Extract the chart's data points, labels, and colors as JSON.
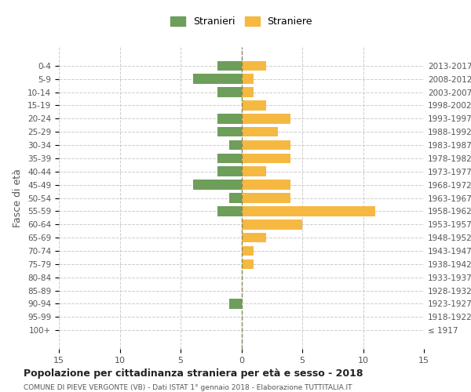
{
  "age_groups": [
    "100+",
    "95-99",
    "90-94",
    "85-89",
    "80-84",
    "75-79",
    "70-74",
    "65-69",
    "60-64",
    "55-59",
    "50-54",
    "45-49",
    "40-44",
    "35-39",
    "30-34",
    "25-29",
    "20-24",
    "15-19",
    "10-14",
    "5-9",
    "0-4"
  ],
  "birth_years": [
    "≤ 1917",
    "1918-1922",
    "1923-1927",
    "1928-1932",
    "1933-1937",
    "1938-1942",
    "1943-1947",
    "1948-1952",
    "1953-1957",
    "1958-1962",
    "1963-1967",
    "1968-1972",
    "1973-1977",
    "1978-1982",
    "1983-1987",
    "1988-1992",
    "1993-1997",
    "1998-2002",
    "2003-2007",
    "2008-2012",
    "2013-2017"
  ],
  "males": [
    0,
    0,
    1,
    0,
    0,
    0,
    0,
    0,
    0,
    2,
    1,
    4,
    2,
    2,
    1,
    2,
    2,
    0,
    2,
    4,
    2
  ],
  "females": [
    0,
    0,
    0,
    0,
    0,
    1,
    1,
    2,
    5,
    11,
    4,
    4,
    2,
    4,
    4,
    3,
    4,
    2,
    1,
    1,
    2
  ],
  "male_color": "#6d9e5a",
  "female_color": "#f5b942",
  "male_label": "Stranieri",
  "female_label": "Straniere",
  "title": "Popolazione per cittadinanza straniera per età e sesso - 2018",
  "subtitle": "COMUNE DI PIEVE VERGONTE (VB) - Dati ISTAT 1° gennaio 2018 - Elaborazione TUTTITALIA.IT",
  "ylabel": "Fasce di età",
  "xlim": 15,
  "bg_color": "#ffffff",
  "grid_color": "#cccccc"
}
